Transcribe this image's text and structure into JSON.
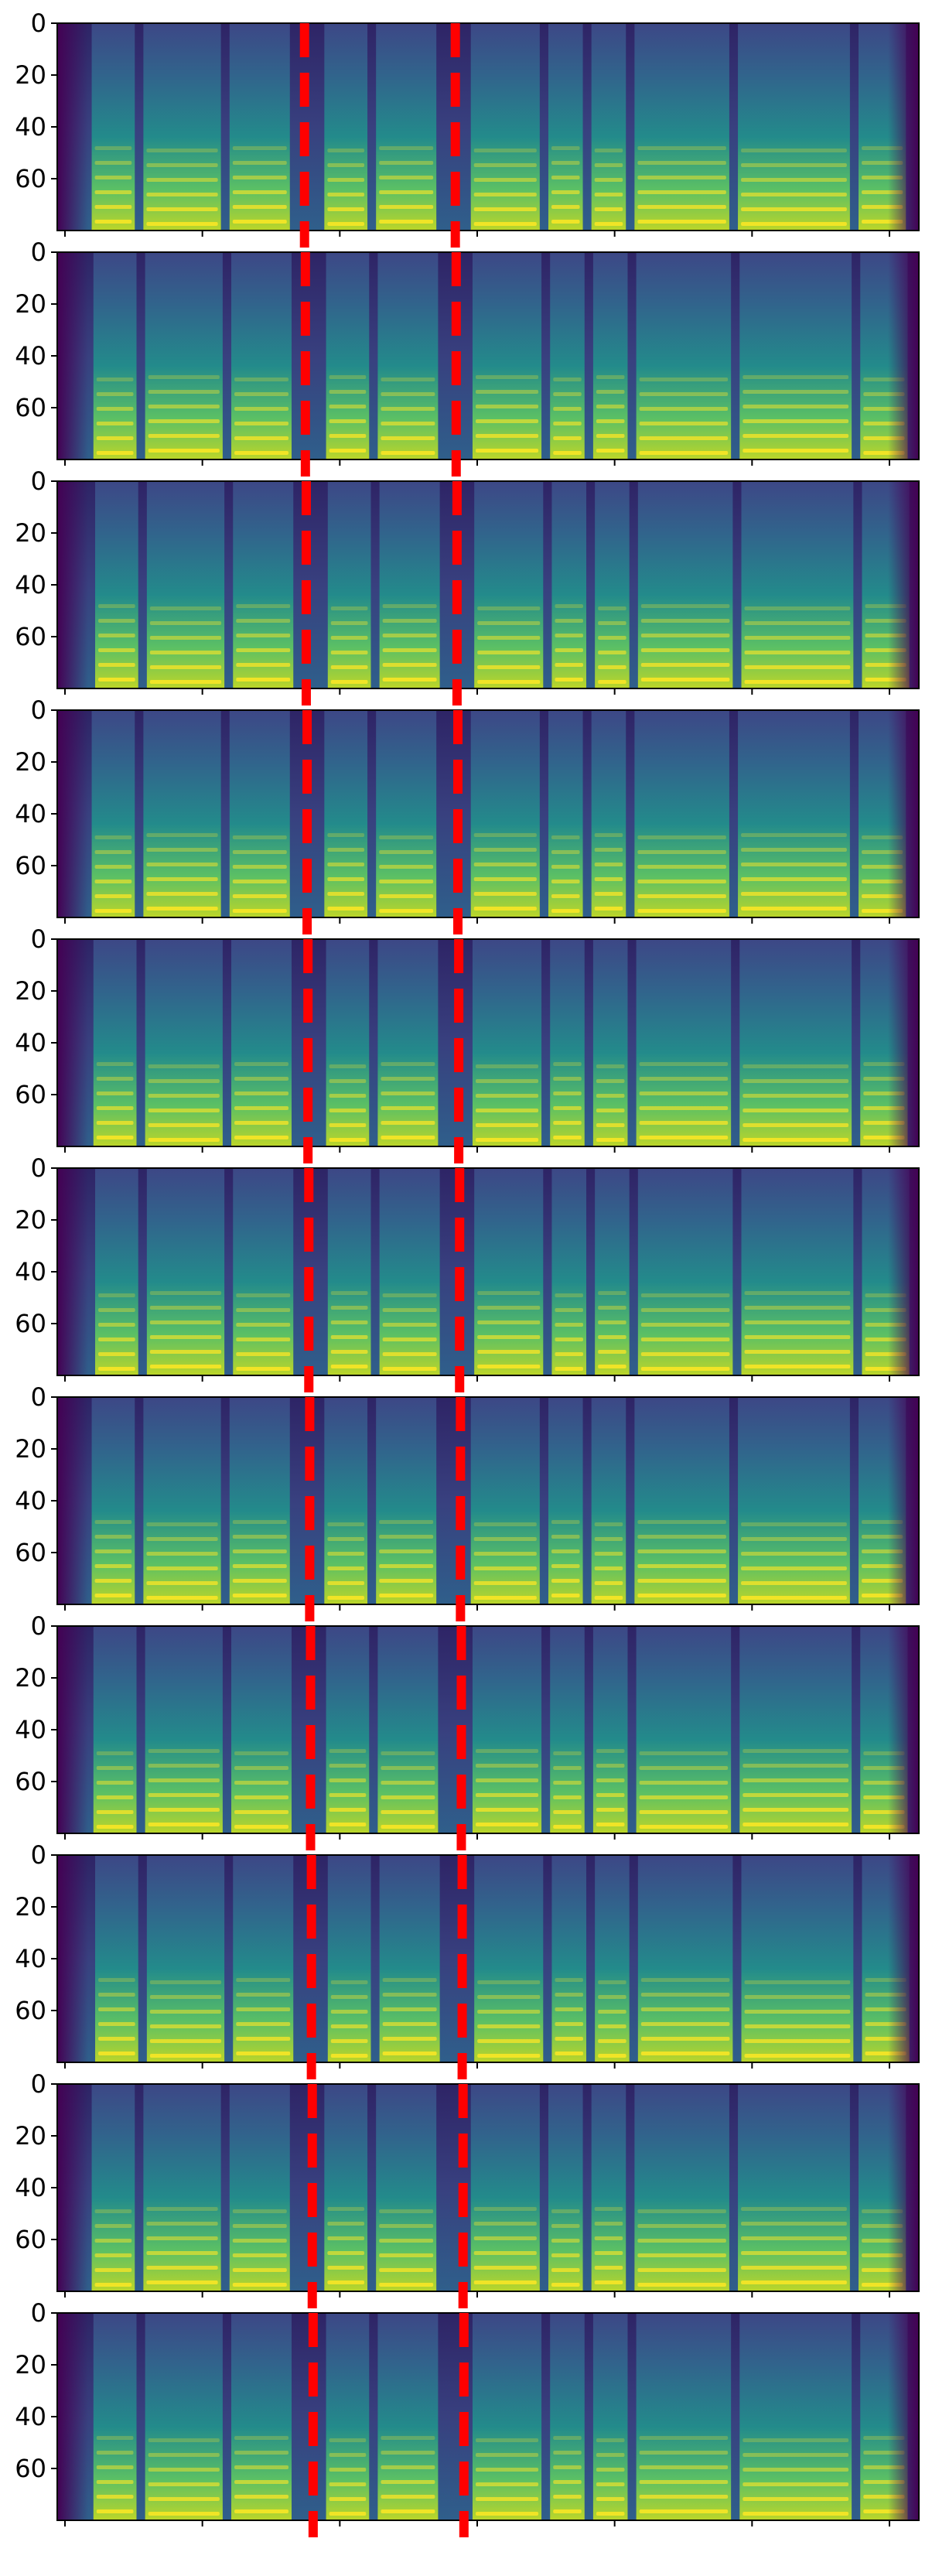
{
  "chart_data": {
    "type": "heatmap",
    "panel_count": 11,
    "ylim": [
      0,
      80
    ],
    "y_inverted": true,
    "ytick_labels": [
      "0",
      "20",
      "40",
      "60"
    ],
    "yticks": [
      0,
      20,
      40,
      60
    ],
    "xticks_count": 7,
    "xlim": [
      0,
      1
    ],
    "grid": false,
    "colormap": "viridis",
    "colors": {
      "low": "#440154",
      "mid": "#21918c",
      "high": "#fde725",
      "marker": "#ff0000"
    },
    "panels": [
      {
        "markers": [
          0.287,
          0.462
        ]
      },
      {
        "markers": [
          0.288,
          0.463
        ]
      },
      {
        "markers": [
          0.289,
          0.464
        ]
      },
      {
        "markers": [
          0.29,
          0.465
        ]
      },
      {
        "markers": [
          0.291,
          0.466
        ]
      },
      {
        "markers": [
          0.292,
          0.467
        ]
      },
      {
        "markers": [
          0.293,
          0.468
        ]
      },
      {
        "markers": [
          0.294,
          0.469
        ]
      },
      {
        "markers": [
          0.295,
          0.47
        ]
      },
      {
        "markers": [
          0.296,
          0.471
        ]
      },
      {
        "markers": [
          0.297,
          0.472
        ]
      }
    ]
  }
}
